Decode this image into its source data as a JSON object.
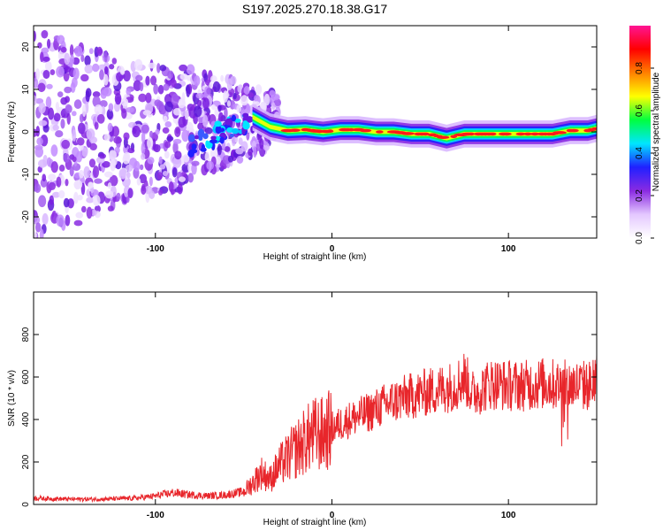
{
  "figure_title": "S197.2025.270.18.38.G17",
  "chart_data": [
    {
      "type": "heatmap",
      "title": "S197.2025.270.18.38.G17",
      "xlabel": "Height of straight line (km)",
      "ylabel": "Frequency (Hz)",
      "xlim": [
        -169,
        150
      ],
      "ylim": [
        -25,
        25
      ],
      "xticks": [
        -100,
        0,
        100
      ],
      "yticks": [
        -20,
        -10,
        0,
        10,
        20
      ],
      "grid": false,
      "colorbar": {
        "label": "Normalized spectral amplitude",
        "range": [
          0.0,
          1.0
        ],
        "ticks": [
          "0.0",
          "0.2",
          "0.4",
          "0.6",
          "0.8"
        ],
        "tick_values": [
          0.0,
          0.2,
          0.4,
          0.6,
          0.8
        ],
        "colormap": [
          "#ffffff",
          "#e4c8ff",
          "#8a2be2",
          "#2020ff",
          "#00e5ff",
          "#00ff40",
          "#ffff00",
          "#ff8000",
          "#ff0000",
          "#ff1493"
        ]
      },
      "ridge": {
        "x": [
          -45,
          -35,
          -25,
          -15,
          -5,
          5,
          15,
          25,
          35,
          45,
          55,
          65,
          75,
          85,
          95,
          105,
          115,
          125,
          135,
          145,
          150
        ],
        "frequency": [
          3.5,
          1.2,
          0.3,
          0.5,
          0.0,
          0.5,
          0.5,
          0.0,
          0.0,
          -0.5,
          -0.5,
          -1.5,
          -0.5,
          -0.5,
          -0.5,
          -0.5,
          -0.5,
          -0.5,
          0.3,
          0.3,
          0.8
        ]
      },
      "noise_region": {
        "x_from": -169,
        "x_to": -30
      }
    },
    {
      "type": "line",
      "xlabel": "Height of straight line (km)",
      "ylabel": "SNR (10 * v/v)",
      "xlim": [
        -169,
        150
      ],
      "ylim": [
        0,
        1000
      ],
      "xticks": [
        -100,
        0,
        100
      ],
      "yticks": [
        0,
        200,
        400,
        600,
        800
      ],
      "grid": false,
      "series": [
        {
          "name": "SNR",
          "color": "#e8262b",
          "x": [
            -169,
            -150,
            -130,
            -110,
            -100,
            -90,
            -80,
            -70,
            -60,
            -50,
            -45,
            -40,
            -35,
            -30,
            -25,
            -20,
            -15,
            -10,
            -5,
            0,
            10,
            20,
            30,
            40,
            50,
            60,
            70,
            75,
            80,
            90,
            100,
            110,
            120,
            130,
            140,
            150
          ],
          "y": [
            30,
            25,
            25,
            30,
            40,
            55,
            45,
            40,
            45,
            60,
            100,
            150,
            120,
            180,
            220,
            260,
            300,
            330,
            330,
            360,
            400,
            430,
            470,
            500,
            520,
            540,
            560,
            600,
            520,
            570,
            560,
            560,
            570,
            560,
            560,
            560
          ]
        }
      ]
    }
  ]
}
